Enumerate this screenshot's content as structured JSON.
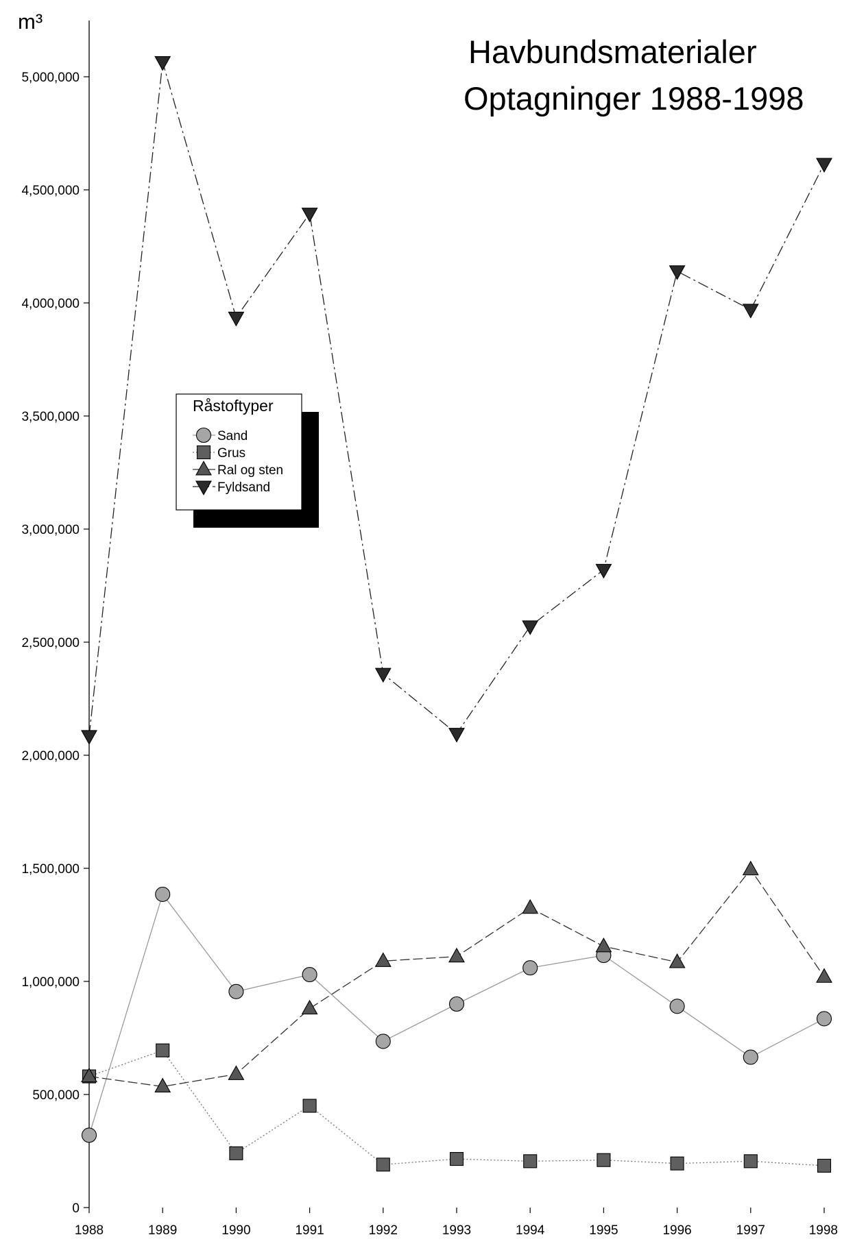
{
  "chart_data": {
    "type": "line",
    "title_line1": "Havbundsmaterialer",
    "title_line2": "Optagninger 1988-1998",
    "ylabel": "m³",
    "xlabel": "",
    "x": [
      "1988",
      "1989",
      "1990",
      "1991",
      "1992",
      "1993",
      "1994",
      "1995",
      "1996",
      "1997",
      "1998"
    ],
    "ylim": [
      0,
      5250000
    ],
    "yticks": [
      0,
      500000,
      1000000,
      1500000,
      2000000,
      2500000,
      3000000,
      3500000,
      4000000,
      4500000,
      5000000
    ],
    "ytick_labels": [
      "0",
      "500,000",
      "1,000,000",
      "1,500,000",
      "2,000,000",
      "2,500,000",
      "3,000,000",
      "3,500,000",
      "4,000,000",
      "4,500,000",
      "5,000,000"
    ],
    "grid": false,
    "legend": {
      "title": "Råstoftyper",
      "placement": "upper-left"
    },
    "series": [
      {
        "name": "Sand",
        "marker": "circle",
        "line_style": "solid",
        "line_color": "#999999",
        "marker_fill": "#a6a6a6",
        "values": [
          320000,
          1385000,
          955000,
          1030000,
          735000,
          900000,
          1060000,
          1115000,
          890000,
          665000,
          835000
        ]
      },
      {
        "name": "Grus",
        "marker": "square",
        "line_style": "dotted",
        "line_color": "#777777",
        "marker_fill": "#5f5f5f",
        "values": [
          580000,
          695000,
          240000,
          450000,
          190000,
          215000,
          205000,
          210000,
          195000,
          205000,
          185000
        ]
      },
      {
        "name": "Ral og sten",
        "marker": "triangle-up",
        "line_style": "dashed",
        "line_color": "#333333",
        "marker_fill": "#555555",
        "values": [
          580000,
          535000,
          590000,
          880000,
          1090000,
          1110000,
          1325000,
          1155000,
          1085000,
          1495000,
          1020000
        ]
      },
      {
        "name": "Fyldsand",
        "marker": "triangle-down",
        "line_style": "dash-dot",
        "line_color": "#222222",
        "marker_fill": "#2a2a2a",
        "values": [
          2085000,
          5065000,
          3935000,
          4395000,
          2360000,
          2095000,
          2570000,
          2820000,
          4140000,
          3970000,
          4615000
        ]
      }
    ]
  }
}
